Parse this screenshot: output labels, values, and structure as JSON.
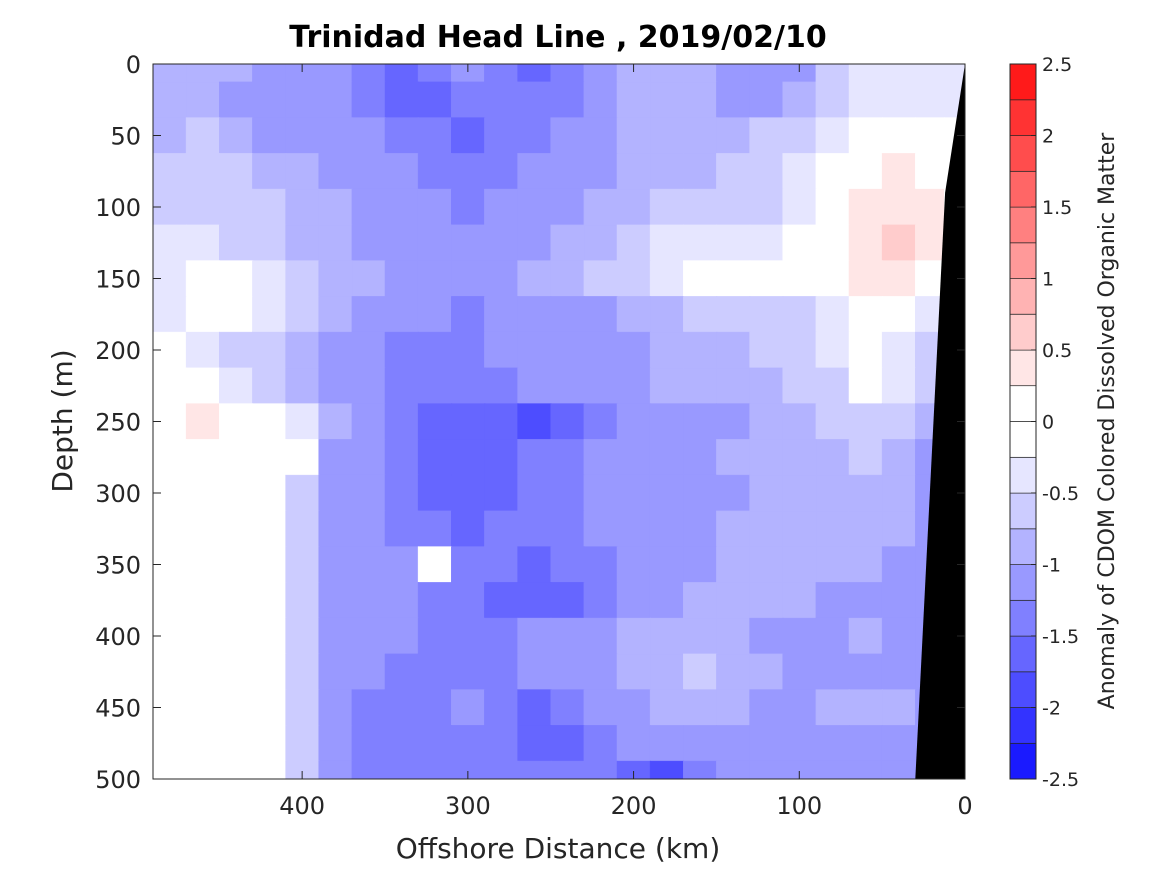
{
  "chart_data": {
    "type": "heatmap",
    "title": "Trinidad Head Line , 2019/02/10",
    "xlabel": "Offshore Distance (km)",
    "ylabel": "Depth (m)",
    "colorbar_label": "Anomaly of CDOM Colored Dissolved Organic Matter",
    "xlim": [
      490,
      0
    ],
    "ylim": [
      0,
      500
    ],
    "x_reversed": true,
    "y_reversed": true,
    "x_ticks": [
      400,
      300,
      200,
      100,
      0
    ],
    "x_tick_labels": [
      "400",
      "300",
      "200",
      "100",
      "0"
    ],
    "y_ticks": [
      0,
      50,
      100,
      150,
      200,
      250,
      300,
      350,
      400,
      450,
      500
    ],
    "y_tick_labels": [
      "0",
      "50",
      "100",
      "150",
      "200",
      "250",
      "300",
      "350",
      "400",
      "450",
      "500"
    ],
    "clim": [
      -2.5,
      2.5
    ],
    "colorbar_ticks": [
      2.5,
      2,
      1.5,
      1,
      0.5,
      0,
      -0.5,
      -1,
      -1.5,
      -2,
      -2.5
    ],
    "colorbar_tick_labels": [
      "2.5",
      "2",
      "1.5",
      "1",
      "0.5",
      "0",
      "-0.5",
      "-1",
      "-1.5",
      "-2",
      "-2.5"
    ],
    "levels": [
      -2.5,
      -2.25,
      -2,
      -1.75,
      -1.5,
      -1.25,
      -1,
      -0.75,
      -0.5,
      -0.25,
      0,
      0.25,
      0.5,
      0.75,
      1,
      1.25,
      1.5,
      1.75,
      2,
      2.25,
      2.5
    ],
    "level_colors": [
      "#0000ff",
      "#1a1aff",
      "#3333ff",
      "#4d4dff",
      "#6666ff",
      "#8080ff",
      "#9999ff",
      "#b3b3ff",
      "#ccccff",
      "#e6e6ff",
      "#ffffff",
      "#ffffff",
      "#ffe6e6",
      "#ffcccc",
      "#ffb3b3",
      "#ff9999",
      "#ff8080",
      "#ff6666",
      "#ff4d4d",
      "#ff3333",
      "#ff1a1a",
      "#ff0000"
    ],
    "grid_x_km": [
      480,
      460,
      440,
      420,
      400,
      380,
      360,
      340,
      320,
      300,
      280,
      260,
      240,
      220,
      200,
      180,
      160,
      140,
      120,
      100,
      80,
      60,
      40,
      20,
      5
    ],
    "grid_depth_m": [
      0,
      25,
      50,
      75,
      100,
      125,
      150,
      175,
      200,
      225,
      250,
      275,
      300,
      325,
      350,
      375,
      400,
      425,
      450,
      475,
      500
    ],
    "anomaly": [
      [
        -0.9,
        -0.8,
        -0.9,
        -1.2,
        -1.1,
        -1.0,
        -1.3,
        -1.5,
        -1.4,
        -1.2,
        -1.3,
        -1.5,
        -1.4,
        -1.0,
        -0.9,
        -0.9,
        -0.9,
        -1.0,
        -1.0,
        -1.0,
        -0.5,
        -0.4,
        -0.3,
        -0.3,
        -0.3
      ],
      [
        -0.9,
        -0.8,
        -1.0,
        -1.2,
        -1.2,
        -1.1,
        -1.3,
        -1.5,
        -1.5,
        -1.3,
        -1.4,
        -1.4,
        -1.3,
        -1.0,
        -0.9,
        -0.9,
        -0.9,
        -1.0,
        -1.0,
        -0.9,
        -0.5,
        -0.4,
        -0.3,
        -0.3,
        -0.3
      ],
      [
        -0.8,
        -0.7,
        -0.9,
        -1.1,
        -1.1,
        -1.2,
        -1.2,
        -1.3,
        -1.4,
        -1.5,
        -1.4,
        -1.3,
        -1.2,
        -1.0,
        -0.9,
        -0.9,
        -0.9,
        -0.8,
        -0.7,
        -0.6,
        -0.3,
        -0.1,
        0.1,
        -0.1,
        -0.2
      ],
      [
        -0.6,
        -0.6,
        -0.7,
        -0.8,
        -0.9,
        -1.0,
        -1.1,
        -1.2,
        -1.3,
        -1.4,
        -1.3,
        -1.2,
        -1.1,
        -1.0,
        -0.9,
        -0.8,
        -0.8,
        -0.7,
        -0.6,
        -0.4,
        0.0,
        0.2,
        0.3,
        0.1,
        0.0
      ],
      [
        -0.5,
        -0.5,
        -0.6,
        -0.7,
        -0.8,
        -0.9,
        -1.0,
        -1.1,
        -1.2,
        -1.3,
        -1.2,
        -1.1,
        -1.0,
        -0.9,
        -0.8,
        -0.7,
        -0.7,
        -0.6,
        -0.5,
        -0.3,
        0.1,
        0.4,
        0.5,
        0.3,
        0.1
      ],
      [
        -0.4,
        -0.4,
        -0.5,
        -0.6,
        -0.8,
        -0.9,
        -1.0,
        -1.1,
        -1.1,
        -1.2,
        -1.1,
        -1.0,
        -0.9,
        -0.8,
        -0.6,
        -0.4,
        -0.3,
        -0.3,
        -0.3,
        -0.2,
        0.1,
        0.5,
        0.6,
        0.3,
        0.1
      ],
      [
        -0.3,
        -0.2,
        -0.1,
        -0.4,
        -0.7,
        -0.8,
        -0.9,
        -1.0,
        -1.1,
        -1.1,
        -1.0,
        -0.9,
        -0.8,
        -0.7,
        -0.5,
        -0.3,
        -0.2,
        -0.2,
        -0.2,
        -0.1,
        0.1,
        0.3,
        0.4,
        0.2,
        0.0
      ],
      [
        -0.4,
        -0.2,
        0.1,
        -0.3,
        -0.7,
        -0.9,
        -1.0,
        -1.1,
        -1.2,
        -1.3,
        -1.2,
        -1.1,
        -1.1,
        -1.0,
        -0.9,
        -0.8,
        -0.7,
        -0.6,
        -0.6,
        -0.5,
        -0.3,
        -0.1,
        -0.2,
        -0.4,
        -0.5
      ],
      [
        -0.2,
        -0.3,
        -0.5,
        -0.7,
        -0.9,
        -1.0,
        -1.1,
        -1.3,
        -1.4,
        -1.3,
        -1.2,
        -1.1,
        -1.1,
        -1.2,
        -1.0,
        -0.9,
        -0.8,
        -0.8,
        -0.7,
        -0.6,
        -0.4,
        0.0,
        -0.3,
        -0.6,
        -0.8
      ],
      [
        0.1,
        0.0,
        -0.4,
        -0.7,
        -0.9,
        -1.0,
        -1.2,
        -1.3,
        -1.4,
        -1.4,
        -1.3,
        -1.2,
        -1.1,
        -1.1,
        -1.0,
        -0.9,
        -0.9,
        -0.9,
        -0.8,
        -0.7,
        -0.6,
        -0.2,
        -0.4,
        -0.7,
        -0.9
      ],
      [
        0.2,
        0.3,
        0.2,
        -0.1,
        -0.3,
        -0.9,
        -1.1,
        -1.3,
        -1.5,
        -1.6,
        -1.7,
        -1.8,
        -1.5,
        -1.3,
        -1.2,
        -1.1,
        -1.0,
        -1.0,
        -0.9,
        -0.8,
        -0.7,
        -0.6,
        -0.7,
        -0.9,
        -1.0
      ],
      [
        0.2,
        0.2,
        0.1,
        -0.1,
        0.1,
        -1.0,
        -1.2,
        -1.4,
        -1.5,
        -1.6,
        -1.5,
        -1.4,
        -1.3,
        -1.2,
        -1.1,
        -1.0,
        -1.0,
        -0.9,
        -0.9,
        -0.8,
        -0.8,
        -0.7,
        -0.8,
        -1.0,
        -1.1
      ],
      [
        0.2,
        0.2,
        0.1,
        0.0,
        -0.5,
        -1.0,
        -1.2,
        -1.4,
        -1.6,
        -1.7,
        -1.5,
        -1.4,
        -1.3,
        -1.2,
        -1.1,
        -1.1,
        -1.0,
        -1.0,
        -0.9,
        -0.9,
        -0.9,
        -0.8,
        -0.9,
        -1.0,
        -1.1
      ],
      [
        0.1,
        0.2,
        0.1,
        0.0,
        -0.6,
        -1.1,
        -1.2,
        -1.3,
        -1.4,
        -1.5,
        -1.4,
        -1.3,
        -1.3,
        -1.2,
        -1.1,
        -1.0,
        -1.0,
        -0.9,
        -0.9,
        -0.8,
        -0.8,
        -0.8,
        -0.9,
        -1.0,
        -1.1
      ],
      [
        0.2,
        0.1,
        0.1,
        0.0,
        -0.5,
        -1.0,
        -1.1,
        -1.2,
        0.1,
        -1.3,
        -1.4,
        -1.5,
        -1.4,
        -1.3,
        -1.2,
        -1.1,
        -1.0,
        -0.9,
        -0.8,
        -0.8,
        -0.9,
        -0.9,
        -1.0,
        -1.1,
        -1.1
      ],
      [
        0.1,
        0.1,
        0.0,
        -0.1,
        -0.5,
        -1.0,
        -1.1,
        -1.2,
        -1.3,
        -1.4,
        -1.5,
        -1.6,
        -1.5,
        -1.3,
        -1.2,
        -1.0,
        -0.9,
        -0.8,
        -0.8,
        -0.9,
        -1.0,
        -1.0,
        -1.0,
        -1.1,
        -1.1
      ],
      [
        0.2,
        0.2,
        0.2,
        0.0,
        -0.5,
        -1.0,
        -1.1,
        -1.2,
        -1.3,
        -1.4,
        -1.3,
        -1.2,
        -1.1,
        -1.0,
        -0.9,
        -0.8,
        -0.8,
        -0.9,
        -1.0,
        -1.0,
        -1.0,
        -0.9,
        -1.0,
        -1.1,
        -1.1
      ],
      [
        0.1,
        0.2,
        0.1,
        0.0,
        -0.5,
        -1.0,
        -1.2,
        -1.3,
        -1.4,
        -1.4,
        -1.3,
        -1.2,
        -1.1,
        -1.0,
        -0.9,
        -0.8,
        -0.7,
        -0.8,
        -0.9,
        -1.0,
        -1.0,
        -1.0,
        -1.0,
        -1.0,
        -1.1
      ],
      [
        0.1,
        0.1,
        0.1,
        0.0,
        -0.5,
        -1.1,
        -1.3,
        -1.4,
        -1.3,
        -1.2,
        -1.3,
        -1.5,
        -1.4,
        -1.2,
        -1.0,
        -0.9,
        -0.8,
        -0.9,
        -1.0,
        -1.0,
        -0.9,
        -0.9,
        -0.9,
        -1.0,
        -1.1
      ],
      [
        0.1,
        0.2,
        0.1,
        0.0,
        -0.5,
        -1.1,
        -1.3,
        -1.4,
        -1.4,
        -1.3,
        -1.4,
        -1.5,
        -1.5,
        -1.3,
        -1.1,
        -1.0,
        -1.0,
        -1.0,
        -1.0,
        -1.0,
        -1.0,
        -1.0,
        -1.0,
        -1.0,
        -1.1
      ],
      [
        0.1,
        0.1,
        0.2,
        0.0,
        -0.5,
        -1.1,
        -1.3,
        -1.3,
        -1.3,
        -1.4,
        -1.4,
        -1.4,
        -1.4,
        -1.3,
        -1.5,
        -1.8,
        -1.4,
        -1.2,
        -1.1,
        -1.1,
        -1.1,
        -1.1,
        -1.1,
        -1.1,
        -1.1
      ]
    ]
  }
}
